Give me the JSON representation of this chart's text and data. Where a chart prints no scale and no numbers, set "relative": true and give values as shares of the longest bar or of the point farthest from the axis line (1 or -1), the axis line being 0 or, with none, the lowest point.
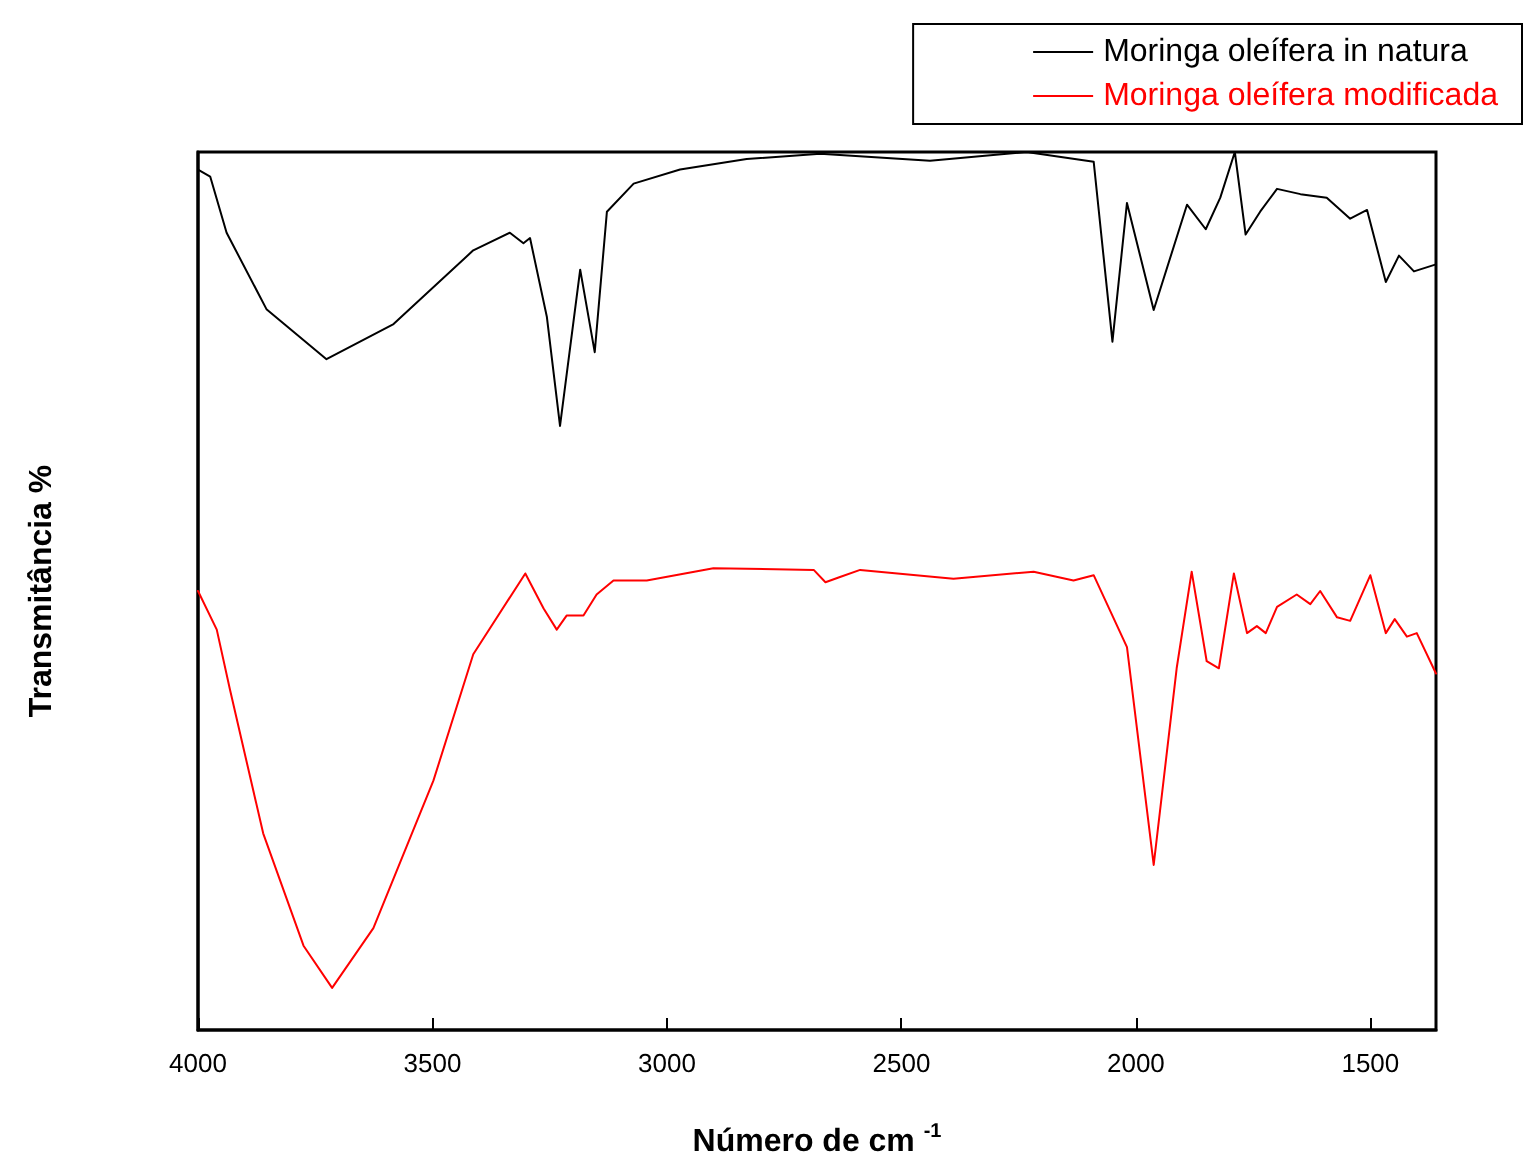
{
  "chart_data": {
    "type": "line",
    "relative": true,
    "xlabel": "Número de cm $^{-1}$",
    "ylabel": "Transmitância %",
    "xlim": [
      4000,
      1360
    ],
    "xticks": [
      4000,
      3500,
      3000,
      2500,
      2000,
      1500
    ],
    "legend": "top right",
    "grid": false,
    "series": [
      {
        "name": "Moringa oleífera in natura",
        "color": "#000000",
        "x": [
          4000,
          3974,
          3939,
          3854,
          3726,
          3583,
          3413,
          3335,
          3306,
          3292,
          3256,
          3228,
          3185,
          3154,
          3128,
          3071,
          2972,
          2830,
          2673,
          2439,
          2233,
          2090,
          2050,
          2019,
          1962,
          1891,
          1851,
          1820,
          1789,
          1766,
          1735,
          1699,
          1649,
          1593,
          1543,
          1507,
          1467,
          1439,
          1407,
          1360
        ],
        "values": [
          0.98,
          0.972,
          0.908,
          0.821,
          0.764,
          0.804,
          0.888,
          0.908,
          0.896,
          0.902,
          0.812,
          0.688,
          0.866,
          0.772,
          0.932,
          0.964,
          0.98,
          0.992,
          0.998,
          0.99,
          1.0,
          0.989,
          0.784,
          0.942,
          0.82,
          0.94,
          0.912,
          0.948,
          1.0,
          0.906,
          0.932,
          0.958,
          0.952,
          0.948,
          0.924,
          0.934,
          0.852,
          0.882,
          0.864,
          0.872
        ]
      },
      {
        "name": "Moringa oleífera modificada",
        "color": "#ff0000",
        "x": [
          4000,
          3960,
          3932,
          3861,
          3775,
          3714,
          3626,
          3498,
          3413,
          3302,
          3263,
          3235,
          3214,
          3178,
          3150,
          3114,
          3043,
          2901,
          2687,
          2662,
          2631,
          2588,
          2389,
          2218,
          2133,
          2090,
          2019,
          1962,
          1913,
          1881,
          1849,
          1823,
          1791,
          1763,
          1742,
          1723,
          1699,
          1657,
          1628,
          1607,
          1571,
          1543,
          1500,
          1467,
          1448,
          1422,
          1401,
          1360
        ],
        "values": [
          0.5,
          0.456,
          0.388,
          0.224,
          0.096,
          0.048,
          0.116,
          0.284,
          0.428,
          0.52,
          0.48,
          0.456,
          0.472,
          0.472,
          0.496,
          0.512,
          0.512,
          0.526,
          0.524,
          0.51,
          0.516,
          0.524,
          0.514,
          0.522,
          0.512,
          0.518,
          0.436,
          0.188,
          0.412,
          0.522,
          0.42,
          0.412,
          0.52,
          0.452,
          0.46,
          0.452,
          0.482,
          0.496,
          0.485,
          0.5,
          0.47,
          0.466,
          0.518,
          0.452,
          0.468,
          0.448,
          0.452,
          0.406
        ]
      }
    ]
  }
}
